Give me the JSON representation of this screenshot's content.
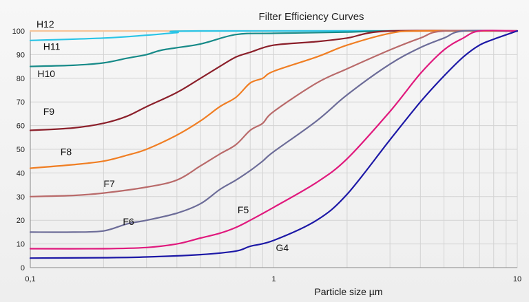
{
  "chart_data": {
    "type": "line",
    "title": "Filter Efficiency Curves",
    "xlabel": "Particle size µm",
    "ylabel": "",
    "x_scale": "log",
    "xlim": [
      0.1,
      10
    ],
    "ylim": [
      0,
      100
    ],
    "x_tick_labels": [
      "0,1",
      "1",
      "10"
    ],
    "y_ticks": [
      0,
      10,
      20,
      30,
      40,
      50,
      60,
      70,
      80,
      90,
      100
    ],
    "grid": true,
    "legend": "none",
    "series": [
      {
        "name": "H12",
        "color": "#f5c49a",
        "points": [
          [
            0.1,
            100
          ],
          [
            10,
            100
          ]
        ]
      },
      {
        "name": "H11",
        "color": "#29c4e6",
        "points": [
          [
            0.1,
            96
          ],
          [
            0.2,
            97
          ],
          [
            0.3,
            98.2
          ],
          [
            0.4,
            99.3
          ],
          [
            0.5,
            100
          ],
          [
            10,
            100
          ]
        ]
      },
      {
        "name": "H10",
        "color": "#168a88",
        "points": [
          [
            0.1,
            85
          ],
          [
            0.15,
            85.5
          ],
          [
            0.2,
            86.5
          ],
          [
            0.25,
            88.5
          ],
          [
            0.3,
            90
          ],
          [
            0.35,
            92
          ],
          [
            0.5,
            94.5
          ],
          [
            0.7,
            98.5
          ],
          [
            1,
            99
          ],
          [
            2,
            99.5
          ],
          [
            3,
            100
          ],
          [
            10,
            100
          ]
        ]
      },
      {
        "name": "F9",
        "color": "#8b1f2a",
        "points": [
          [
            0.1,
            58
          ],
          [
            0.15,
            59
          ],
          [
            0.2,
            61
          ],
          [
            0.25,
            64
          ],
          [
            0.3,
            68
          ],
          [
            0.4,
            74
          ],
          [
            0.5,
            80
          ],
          [
            0.6,
            85
          ],
          [
            0.7,
            89
          ],
          [
            0.8,
            91
          ],
          [
            1,
            94
          ],
          [
            1.5,
            95.5
          ],
          [
            2,
            97
          ],
          [
            3,
            100
          ],
          [
            10,
            100
          ]
        ]
      },
      {
        "name": "F8",
        "color": "#f07e23",
        "points": [
          [
            0.1,
            42
          ],
          [
            0.15,
            43.5
          ],
          [
            0.2,
            45
          ],
          [
            0.25,
            47.5
          ],
          [
            0.3,
            50
          ],
          [
            0.4,
            56
          ],
          [
            0.5,
            62
          ],
          [
            0.6,
            68
          ],
          [
            0.7,
            72
          ],
          [
            0.8,
            78
          ],
          [
            0.9,
            80
          ],
          [
            1,
            83
          ],
          [
            1.5,
            89
          ],
          [
            2,
            94
          ],
          [
            3,
            99
          ],
          [
            4,
            100
          ],
          [
            10,
            100
          ]
        ]
      },
      {
        "name": "F7",
        "color": "#b96a6a",
        "points": [
          [
            0.1,
            30
          ],
          [
            0.15,
            30.5
          ],
          [
            0.2,
            31.5
          ],
          [
            0.3,
            34
          ],
          [
            0.4,
            37
          ],
          [
            0.5,
            43
          ],
          [
            0.6,
            48
          ],
          [
            0.7,
            52
          ],
          [
            0.8,
            58
          ],
          [
            0.9,
            61
          ],
          [
            1,
            66
          ],
          [
            1.5,
            78
          ],
          [
            2,
            84
          ],
          [
            3,
            92
          ],
          [
            4,
            97
          ],
          [
            5,
            100
          ],
          [
            10,
            100
          ]
        ]
      },
      {
        "name": "F6",
        "color": "#6c6c98",
        "points": [
          [
            0.1,
            15
          ],
          [
            0.15,
            15
          ],
          [
            0.2,
            15.5
          ],
          [
            0.25,
            18.5
          ],
          [
            0.3,
            20
          ],
          [
            0.4,
            23
          ],
          [
            0.5,
            27
          ],
          [
            0.6,
            33
          ],
          [
            0.7,
            37
          ],
          [
            0.8,
            41
          ],
          [
            0.9,
            45
          ],
          [
            1,
            49
          ],
          [
            1.5,
            62
          ],
          [
            2,
            73
          ],
          [
            3,
            86
          ],
          [
            4,
            93
          ],
          [
            5,
            97
          ],
          [
            6,
            100
          ],
          [
            10,
            100
          ]
        ]
      },
      {
        "name": "F5",
        "color": "#e0197d",
        "points": [
          [
            0.1,
            8
          ],
          [
            0.2,
            8
          ],
          [
            0.3,
            8.5
          ],
          [
            0.4,
            10
          ],
          [
            0.5,
            12.5
          ],
          [
            0.6,
            14.5
          ],
          [
            0.7,
            17
          ],
          [
            0.8,
            20
          ],
          [
            1,
            25.5
          ],
          [
            1.5,
            36
          ],
          [
            2,
            46
          ],
          [
            3,
            66
          ],
          [
            4,
            82
          ],
          [
            5,
            92
          ],
          [
            6,
            97
          ],
          [
            7,
            100
          ],
          [
            10,
            100
          ]
        ]
      },
      {
        "name": "G4",
        "color": "#1c18a6",
        "points": [
          [
            0.1,
            4
          ],
          [
            0.2,
            4.2
          ],
          [
            0.3,
            4.5
          ],
          [
            0.5,
            5.5
          ],
          [
            0.7,
            7
          ],
          [
            0.8,
            9
          ],
          [
            1,
            11.5
          ],
          [
            1.5,
            20
          ],
          [
            2,
            31
          ],
          [
            3,
            54
          ],
          [
            4,
            70
          ],
          [
            5,
            81
          ],
          [
            6,
            89
          ],
          [
            7,
            94
          ],
          [
            8,
            96.5
          ],
          [
            10,
            100
          ]
        ]
      }
    ],
    "series_label_positions": {
      "H12": [
        0.106,
        101.5
      ],
      "H11": [
        0.113,
        92
      ],
      "H10": [
        0.107,
        80.5
      ],
      "F9": [
        0.113,
        64.5
      ],
      "F8": [
        0.133,
        47.5
      ],
      "F7": [
        0.2,
        34
      ],
      "F6": [
        0.24,
        18
      ],
      "F5": [
        0.71,
        23
      ],
      "G4": [
        1.02,
        7
      ]
    }
  }
}
